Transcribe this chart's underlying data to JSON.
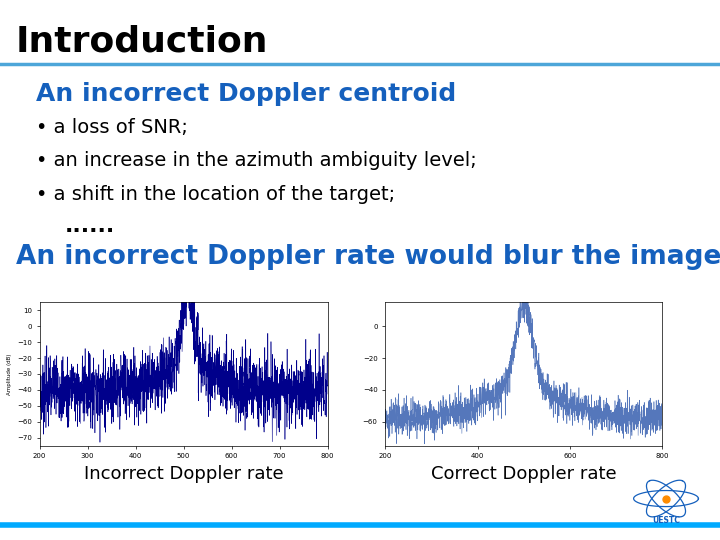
{
  "title": "Introduction",
  "title_fontsize": 26,
  "title_color": "#000000",
  "subtitle": "An incorrect Doppler centroid",
  "subtitle_color": "#1560BD",
  "subtitle_fontsize": 18,
  "bullets": [
    "a loss of SNR;",
    "an increase in the azimuth ambiguity level;",
    "a shift in the location of the target;"
  ],
  "bullet_fontsize": 14,
  "bullet_color": "#000000",
  "ellipsis": "......",
  "ellipsis_fontsize": 16,
  "big_text": "An incorrect Doppler rate would blur the image.",
  "big_text_color": "#1560BD",
  "big_text_fontsize": 19,
  "caption_left": "Incorrect Doppler rate",
  "caption_right": "Correct Doppler rate",
  "caption_fontsize": 13,
  "caption_color": "#000000",
  "bg_color": "#ffffff",
  "header_line_color": "#4da6d9",
  "footer_line_color": "#00aaff",
  "logo_color_orange": "#FF8C00",
  "logo_color_blue": "#1560BD"
}
